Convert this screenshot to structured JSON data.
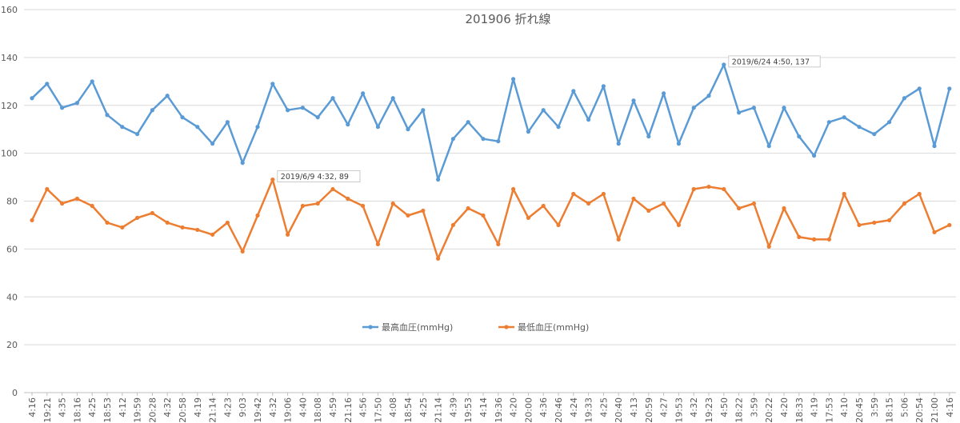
{
  "chart_data": {
    "type": "line",
    "title": "201906 折れ線",
    "xlabel": "",
    "ylabel": "",
    "ylim": [
      0,
      160
    ],
    "yticks": [
      0,
      20,
      40,
      60,
      80,
      100,
      120,
      140,
      160
    ],
    "grid": true,
    "legend_position": "bottom-center",
    "categories": [
      "4:16",
      "19:21",
      "4:35",
      "18:16",
      "4:25",
      "18:53",
      "4:12",
      "19:59",
      "20:28",
      "4:32",
      "20:58",
      "4:19",
      "21:14",
      "4:23",
      "9:03",
      "19:42",
      "4:32",
      "19:06",
      "4:40",
      "18:08",
      "4:59",
      "21:16",
      "4:56",
      "17:50",
      "4:08",
      "18:54",
      "4:25",
      "21:14",
      "4:39",
      "19:53",
      "4:14",
      "19:36",
      "4:20",
      "20:00",
      "4:36",
      "20:46",
      "4:24",
      "19:33",
      "4:25",
      "20:40",
      "4:13",
      "20:59",
      "4:27",
      "19:53",
      "4:32",
      "19:23",
      "4:50",
      "18:22",
      "3:59",
      "20:22",
      "4:20",
      "18:33",
      "4:19",
      "17:53",
      "4:10",
      "20:45",
      "3:59",
      "18:15",
      "5:06",
      "20:54",
      "21:00",
      "4:16"
    ],
    "series": [
      {
        "name": "最高血圧(mmHg)",
        "color": "#5B9BD5",
        "values": [
          123,
          129,
          119,
          121,
          130,
          116,
          111,
          108,
          118,
          124,
          115,
          111,
          104,
          113,
          96,
          111,
          129,
          118,
          119,
          115,
          123,
          112,
          125,
          111,
          123,
          110,
          118,
          89,
          106,
          113,
          106,
          105,
          131,
          109,
          118,
          111,
          126,
          114,
          128,
          104,
          122,
          107,
          125,
          104,
          119,
          124,
          137,
          117,
          119,
          103,
          119,
          107,
          99,
          113,
          115,
          111,
          108,
          113,
          123,
          127,
          103,
          127
        ]
      },
      {
        "name": "最低血圧(mmHg)",
        "color": "#ED7D31",
        "values": [
          72,
          85,
          79,
          81,
          78,
          71,
          69,
          73,
          75,
          71,
          69,
          68,
          66,
          71,
          59,
          74,
          89,
          66,
          78,
          79,
          85,
          81,
          78,
          62,
          79,
          74,
          76,
          56,
          70,
          77,
          74,
          62,
          85,
          73,
          78,
          70,
          83,
          79,
          83,
          64,
          81,
          76,
          79,
          70,
          85,
          86,
          85,
          77,
          79,
          61,
          77,
          65,
          64,
          64,
          83,
          70,
          71,
          72,
          79,
          83,
          67,
          70
        ]
      }
    ],
    "annotations": [
      {
        "series": 0,
        "index": 46,
        "text": "2019/6/24 4:50, 137"
      },
      {
        "series": 1,
        "index": 16,
        "text": "2019/6/9 4:32, 89"
      }
    ]
  }
}
